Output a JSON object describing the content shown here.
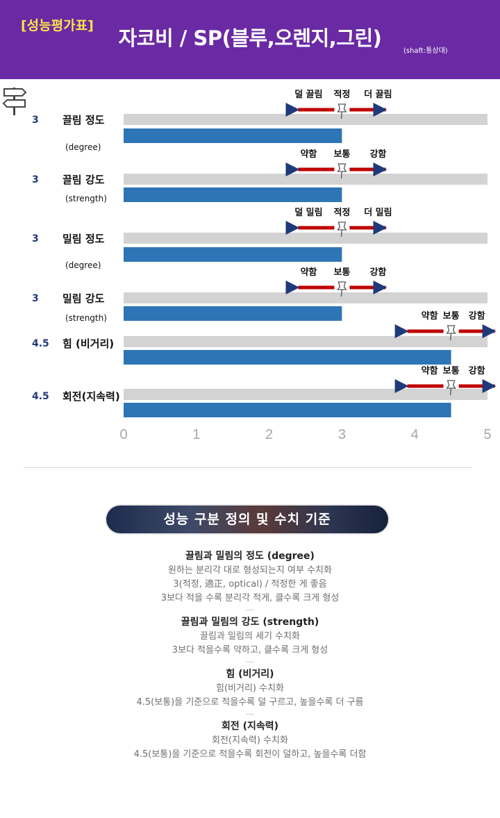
{
  "header": {
    "tag": "[성능평가표]",
    "title": "자코비 / SP(블루,오렌지,그린)",
    "shaft_note": "(shaft:통상대)"
  },
  "chart_data": {
    "type": "bar",
    "orientation": "horizontal",
    "xlim": [
      0,
      5
    ],
    "x_ticks": [
      "0",
      "1",
      "2",
      "3",
      "4",
      "5"
    ],
    "bar_color": "#2e75b6",
    "track_color": "#d3d3d3",
    "arrow_color": "#c00000",
    "categories": [
      {
        "score": "3",
        "name": "끌림 정도",
        "sub": "(degree)",
        "value": 3,
        "marker": 3,
        "scale": [
          "덜 끌림",
          "적정",
          "더 끌림"
        ]
      },
      {
        "score": "3",
        "name": "끌림 강도",
        "sub": "(strength)",
        "value": 3,
        "marker": 3,
        "scale": [
          "약함",
          "보통",
          "강함"
        ]
      },
      {
        "score": "3",
        "name": "밀림 정도",
        "sub": "(degree)",
        "value": 3,
        "marker": 3,
        "scale": [
          "덜 밀림",
          "적정",
          "더 밀림"
        ]
      },
      {
        "score": "3",
        "name": "밀림 강도",
        "sub": "(strength)",
        "value": 3,
        "marker": 3,
        "scale": [
          "약함",
          "보통",
          "강함"
        ]
      },
      {
        "score": "4.5",
        "name": "힘 (비거리)",
        "sub": "",
        "value": 4.5,
        "marker": 4.5,
        "scale": [
          "약함",
          "보통",
          "강함"
        ]
      },
      {
        "score": "4.5",
        "name": "회전(지속력)",
        "sub": "",
        "value": 4.5,
        "marker": 4.5,
        "scale": [
          "약함",
          "보통",
          "강함"
        ]
      }
    ]
  },
  "definitions": {
    "heading": "성능 구분 정의 및 수치 기준",
    "sections": [
      {
        "title": "끌림과 밀림의 정도 (degree)",
        "lines": [
          "원하는 분리각 대로 형성되는지 여부 수치화",
          "3(적정, 適正, optical) / 적정한 게 좋음",
          "3보다 적을 수록 분리각 적게, 클수록 크게 형성"
        ]
      },
      {
        "title": "끌림과 밀림의 강도 (strength)",
        "lines": [
          "끌림과 밀림의 세기 수치화",
          "3보다 적을수록 약하고, 클수록 크게 형성"
        ]
      },
      {
        "title": "힘 (비거리)",
        "lines": [
          "힘(비거리) 수치화",
          "4.5(보통)을 기준으로 적을수록 덜 구르고, 높을수록 더 구름"
        ]
      },
      {
        "title": "회전 (지속력)",
        "lines": [
          "회전(지속력) 수치화",
          "4.5(보통)을 기준으로 적을수록 회전이 덜하고, 높을수록 더함"
        ]
      }
    ]
  }
}
